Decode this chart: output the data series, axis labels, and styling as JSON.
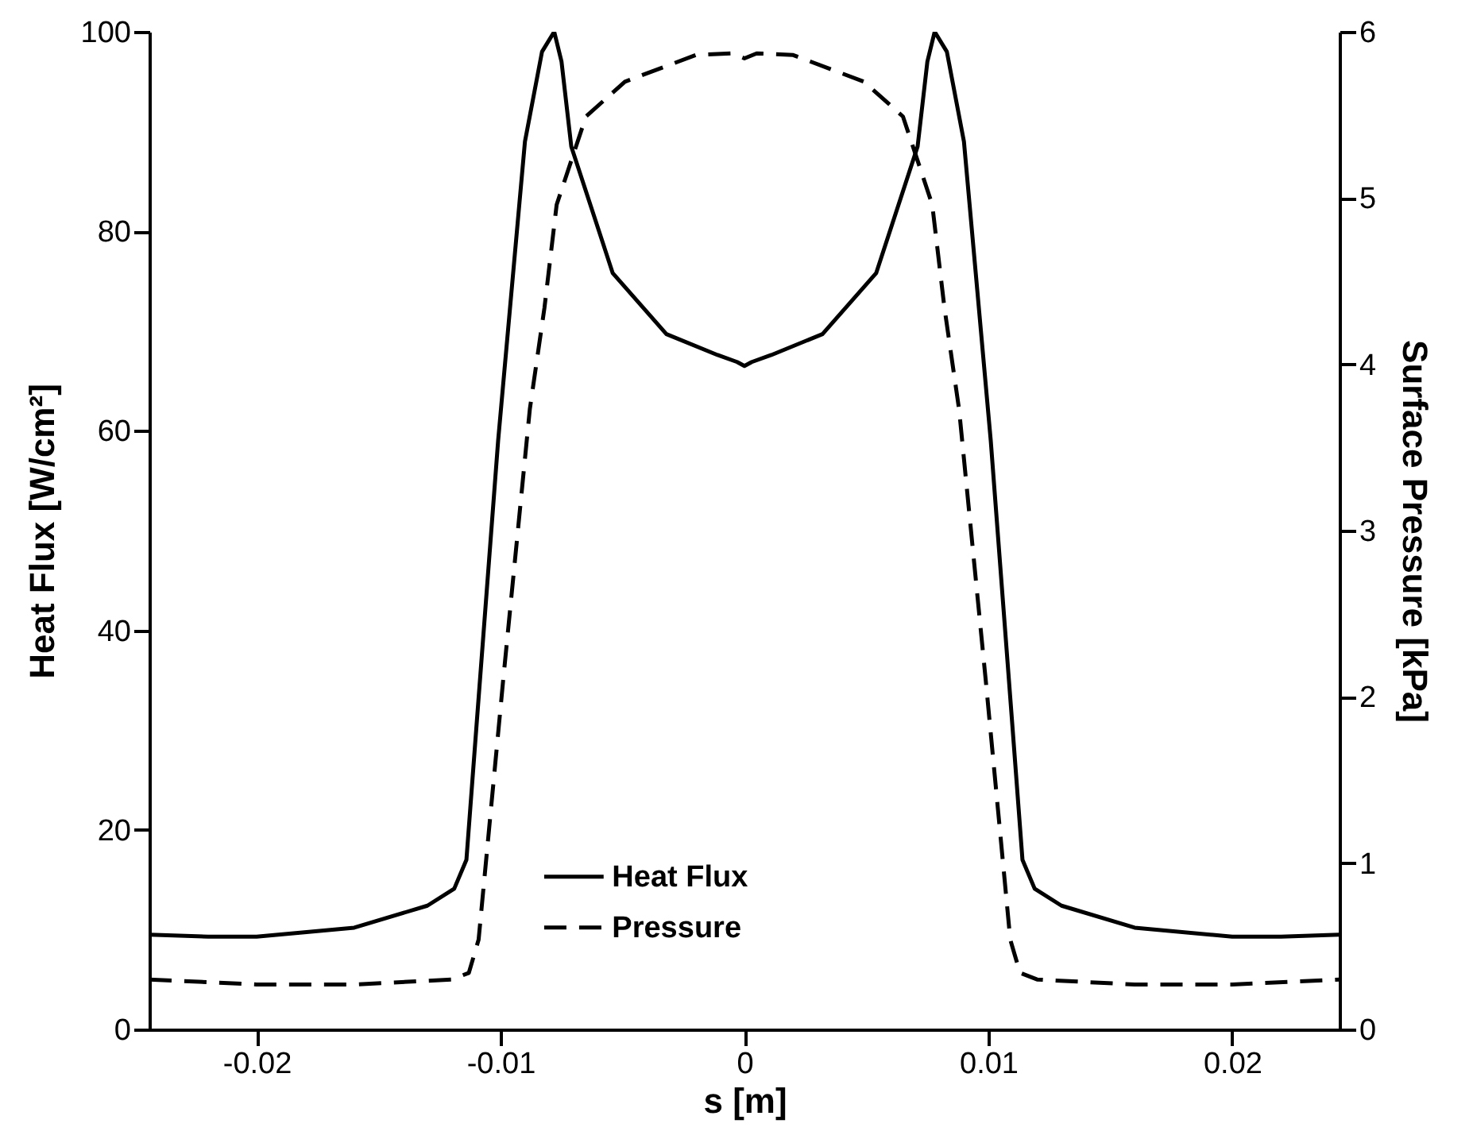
{
  "chart_data": {
    "type": "line",
    "xlabel": "s [m]",
    "ylabel": "Heat Flux [W/cm²]",
    "y2label": "Surface Pressure [kPa]",
    "xlim": [
      -0.0244,
      0.0244
    ],
    "xticks": [
      -0.02,
      -0.01,
      0,
      0.01,
      0.02
    ],
    "ylim": [
      0,
      100
    ],
    "yticks": [
      0,
      20,
      40,
      60,
      80,
      100
    ],
    "y2lim": [
      0,
      6
    ],
    "y2ticks": [
      0,
      1,
      2,
      3,
      4,
      5,
      6
    ],
    "grid": false,
    "legend": "bottom",
    "marker": "none",
    "series": [
      {
        "name": "Heat Flux",
        "color": "#000000",
        "line_style": "solid",
        "x": [
          -0.0244,
          -0.022,
          -0.02,
          -0.016,
          -0.013,
          -0.0119,
          -0.0114,
          -0.011,
          -0.0101,
          -0.009,
          -0.0083,
          -0.0078,
          -0.0075,
          -0.0071,
          -0.0054,
          -0.0032,
          -0.0011,
          -0.0003,
          0,
          0.0003,
          0.0011,
          0.0032,
          0.0054,
          0.0071,
          0.0075,
          0.0078,
          0.0083,
          0.009,
          0.0101,
          0.011,
          0.0114,
          0.0119,
          0.013,
          0.016,
          0.02,
          0.022,
          0.0244
        ],
        "values": [
          9.5,
          9.3,
          9.3,
          10.2,
          12.4,
          14.1,
          17,
          30,
          59,
          89,
          98,
          100,
          97,
          88.5,
          75.8,
          69.7,
          67.6,
          66.9,
          66.5,
          66.9,
          67.6,
          69.7,
          75.8,
          88.5,
          97,
          100,
          98,
          89,
          59,
          30,
          17,
          14.1,
          12.4,
          10.2,
          9.3,
          9.3,
          9.5
        ]
      },
      {
        "name": "Pressure",
        "color": "#000000",
        "line_style": "dashed",
        "axis": "y2",
        "x": [
          -0.0244,
          -0.02,
          -0.016,
          -0.012,
          -0.0113,
          -0.0109,
          -0.0099,
          -0.0088,
          -0.0082,
          -0.0077,
          -0.0065,
          -0.0049,
          -0.002,
          -0.0005,
          0,
          0.0005,
          0.002,
          0.0049,
          0.0065,
          0.0077,
          0.0082,
          0.0088,
          0.0099,
          0.0109,
          0.0113,
          0.012,
          0.016,
          0.02,
          0.0244
        ],
        "values": [
          0.3,
          0.27,
          0.27,
          0.3,
          0.34,
          0.54,
          2.09,
          3.73,
          4.34,
          4.96,
          5.49,
          5.7,
          5.86,
          5.87,
          5.84,
          5.87,
          5.86,
          5.7,
          5.49,
          4.96,
          4.34,
          3.73,
          2.09,
          0.54,
          0.34,
          0.3,
          0.27,
          0.27,
          0.3
        ]
      }
    ]
  }
}
